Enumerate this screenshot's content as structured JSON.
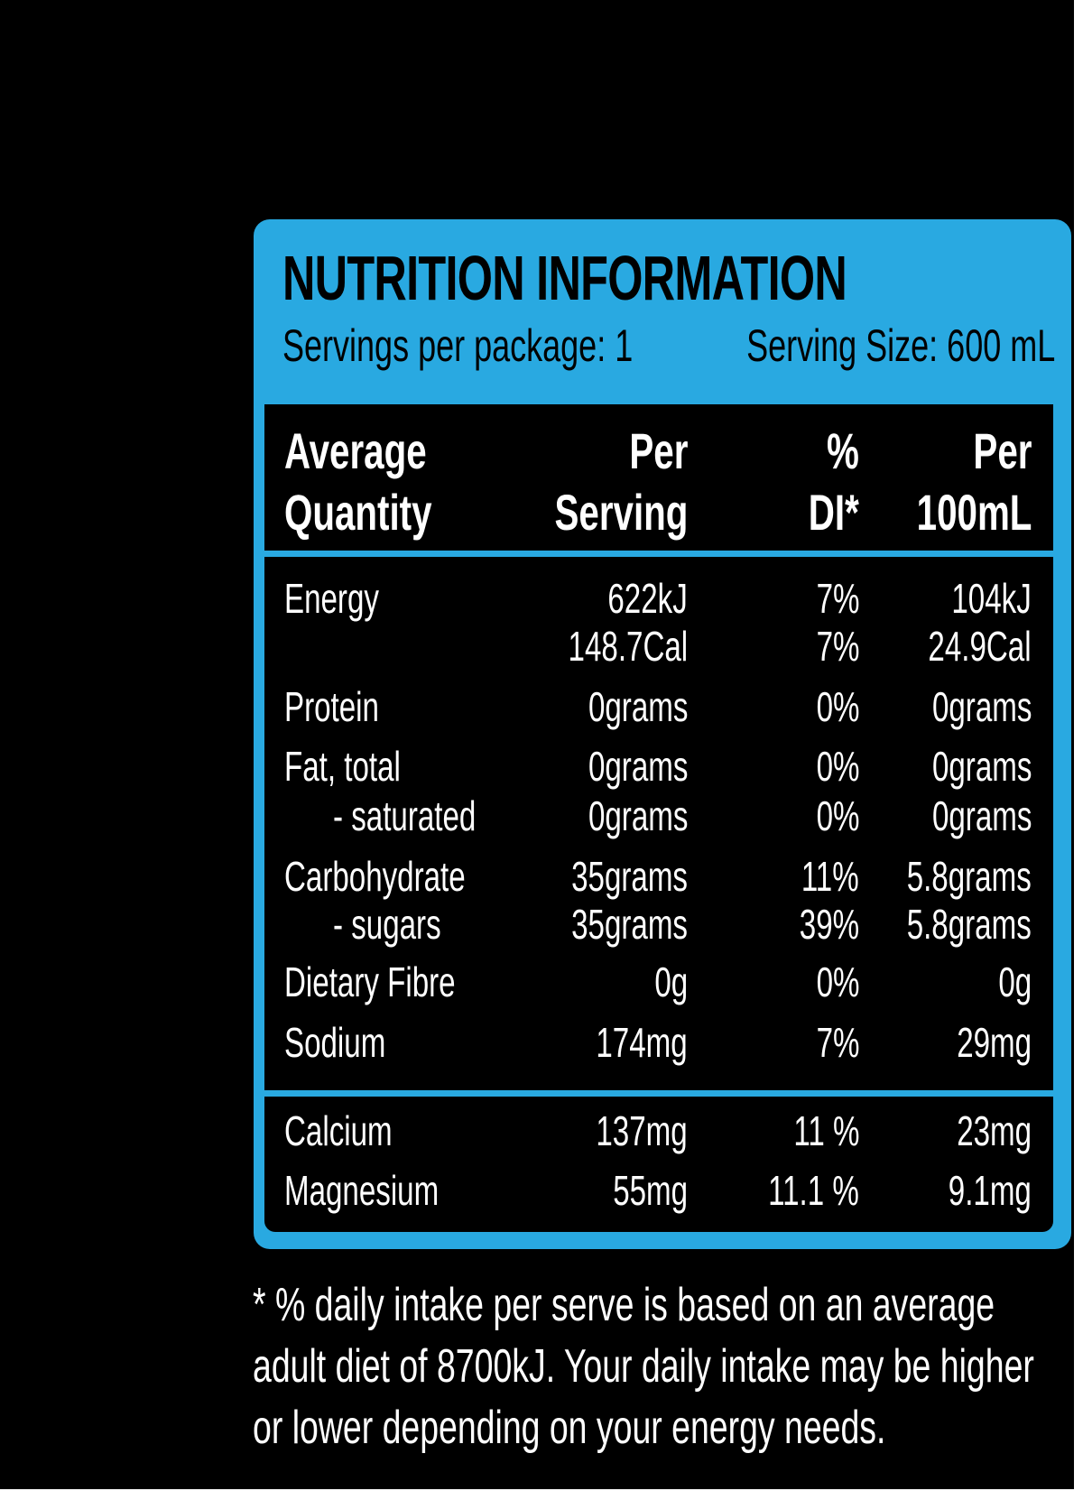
{
  "panel": {
    "title": "NUTRITION INFORMATION",
    "servings_per_package": "Servings per package: 1",
    "serving_size": "Serving Size: 600 mL"
  },
  "header": {
    "col0": [
      "Average",
      "Quantity"
    ],
    "col1": [
      "Per",
      "Serving"
    ],
    "col2": [
      "%",
      "DI*"
    ],
    "col3": [
      "Per",
      "100mL"
    ]
  },
  "rows": [
    {
      "name": "Energy",
      "per_serving": "622kJ",
      "di": "7%",
      "per_100ml": "104kJ"
    },
    {
      "name": "",
      "per_serving": "148.7Cal",
      "di": "7%",
      "per_100ml": "24.9Cal"
    },
    {
      "name": "Protein",
      "per_serving": "0grams",
      "di": "0%",
      "per_100ml": "0grams"
    },
    {
      "name": "Fat, total",
      "per_serving": "0grams",
      "di": "0%",
      "per_100ml": "0grams"
    },
    {
      "name": "- saturated",
      "per_serving": "0grams",
      "di": "0%",
      "per_100ml": "0grams"
    },
    {
      "name": "Carbohydrate",
      "per_serving": "35grams",
      "di": "11%",
      "per_100ml": "5.8grams"
    },
    {
      "name": "- sugars",
      "per_serving": "35grams",
      "di": "39%",
      "per_100ml": "5.8grams"
    },
    {
      "name": "Dietary Fibre",
      "per_serving": "0g",
      "di": "0%",
      "per_100ml": "0g"
    },
    {
      "name": "Sodium",
      "per_serving": "174mg",
      "di": "7%",
      "per_100ml": "29mg"
    }
  ],
  "minerals": [
    {
      "name": "Calcium",
      "per_serving": "137mg",
      "di": "11 %",
      "per_100ml": "23mg"
    },
    {
      "name": "Magnesium",
      "per_serving": "55mg",
      "di": "11.1 %",
      "per_100ml": "9.1mg"
    }
  ],
  "footnote": [
    "* % daily intake per serve is based on an average",
    "adult diet of 8700kJ. Your daily intake may be higher",
    "or lower depending on your energy needs."
  ],
  "colors": {
    "background": "#000000",
    "panel_blue": "#29a9e1",
    "text_dark": "#000000",
    "text_light": "#ffffff"
  }
}
